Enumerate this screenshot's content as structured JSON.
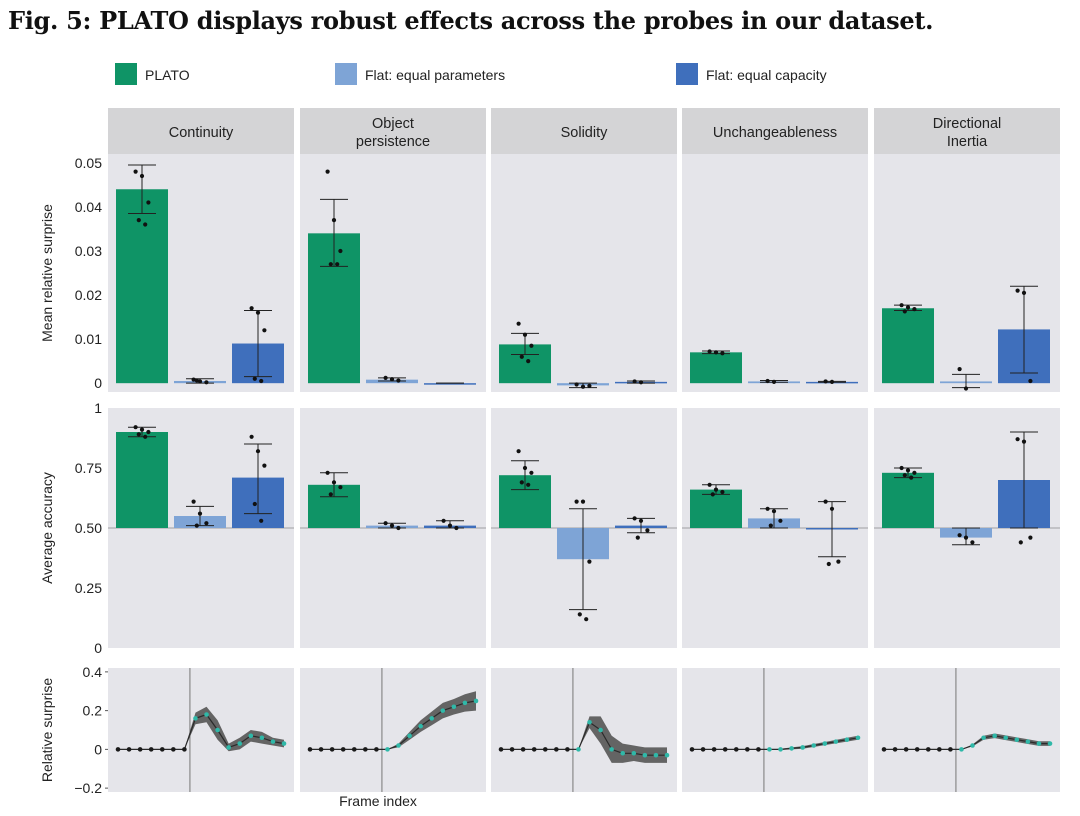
{
  "figure_title": "Fig. 5: PLATO displays robust effects across the probes in our dataset.",
  "colors": {
    "plato": "#0f9466",
    "flat_params": "#7ea4d6",
    "flat_capacity": "#3f6fbc",
    "panel_bg": "#e5e5ea",
    "strip_bg": "#d4d4d6"
  },
  "chart_data": {
    "type": "bar",
    "probes": [
      "Continuity",
      "Object\npersistence",
      "Solidity",
      "Unchangeableness",
      "Directional\nInertia"
    ],
    "legend": [
      "PLATO",
      "Flat: equal parameters",
      "Flat: equal capacity"
    ],
    "surprise": {
      "ylabel": "Mean relative surprise",
      "ylim": [
        -0.002,
        0.052
      ],
      "ticks": [
        0,
        0.01,
        0.02,
        0.03,
        0.04,
        0.05
      ],
      "tick_labels": [
        "0",
        "0.01",
        "0.02",
        "0.03",
        "0.04",
        "0.05"
      ],
      "values": [
        [
          0.044,
          0.0005,
          0.009
        ],
        [
          0.034,
          0.0008,
          0.0
        ],
        [
          0.0088,
          -0.0005,
          0.0003
        ],
        [
          0.007,
          0.0004,
          0.0003
        ],
        [
          0.017,
          0.0004,
          0.0122
        ]
      ],
      "errors": [
        [
          [
            0.0385,
            0.0495
          ],
          [
            0.0,
            0.001
          ],
          [
            0.0015,
            0.0165
          ]
        ],
        [
          [
            0.0265,
            0.0417
          ],
          [
            0.0005,
            0.0012
          ],
          [
            0.0,
            0.0
          ]
        ],
        [
          [
            0.0065,
            0.0113
          ],
          [
            -0.001,
            0.0
          ],
          [
            0.0,
            0.0005
          ]
        ],
        [
          [
            0.0067,
            0.0073
          ],
          [
            0.0002,
            0.0006
          ],
          [
            0.0002,
            0.0004
          ]
        ],
        [
          [
            0.0165,
            0.0177
          ],
          [
            -0.001,
            0.002
          ],
          [
            0.0023,
            0.022
          ]
        ]
      ],
      "points": [
        [
          [
            0.048,
            0.047,
            0.041,
            0.037,
            0.036
          ],
          [
            0.0008,
            0.0004,
            0.0002,
            0.0006
          ],
          [
            0.017,
            0.016,
            0.012,
            0.001,
            0.0005
          ]
        ],
        [
          [
            0.048,
            0.037,
            0.03,
            0.027,
            0.027
          ],
          [
            0.0012,
            0.0009,
            0.0006
          ],
          []
        ],
        [
          [
            0.0135,
            0.011,
            0.0085,
            0.006,
            0.005
          ],
          [
            -0.0003,
            -0.0008,
            -0.0006
          ],
          [
            0.0004,
            0.0002
          ]
        ],
        [
          [
            0.0072,
            0.007,
            0.0068
          ],
          [
            0.0005,
            0.0003
          ],
          [
            0.0004,
            0.0003
          ]
        ],
        [
          [
            0.0177,
            0.0172,
            0.0168,
            0.0163
          ],
          [
            0.0032,
            -0.0012
          ],
          [
            0.021,
            0.0205,
            0.0005
          ]
        ]
      ]
    },
    "accuracy": {
      "ylabel": "Average accuracy",
      "ylim": [
        0,
        1.0
      ],
      "ticks": [
        0,
        0.25,
        0.5,
        0.75,
        1.0
      ],
      "tick_labels": [
        "0",
        "0.25",
        "0.50",
        "0.75",
        "1"
      ],
      "baseline": 0.5,
      "values": [
        [
          0.9,
          0.55,
          0.71
        ],
        [
          0.68,
          0.51,
          0.51
        ],
        [
          0.72,
          0.37,
          0.51
        ],
        [
          0.66,
          0.54,
          0.5
        ],
        [
          0.73,
          0.46,
          0.7
        ]
      ],
      "errors": [
        [
          [
            0.88,
            0.92
          ],
          [
            0.51,
            0.59
          ],
          [
            0.56,
            0.85
          ]
        ],
        [
          [
            0.63,
            0.73
          ],
          [
            0.5,
            0.52
          ],
          [
            0.5,
            0.53
          ]
        ],
        [
          [
            0.66,
            0.78
          ],
          [
            0.16,
            0.58
          ],
          [
            0.48,
            0.54
          ]
        ],
        [
          [
            0.64,
            0.68
          ],
          [
            0.5,
            0.58
          ],
          [
            0.38,
            0.61
          ]
        ],
        [
          [
            0.71,
            0.75
          ],
          [
            0.43,
            0.5
          ],
          [
            0.5,
            0.9
          ]
        ]
      ],
      "points": [
        [
          [
            0.92,
            0.91,
            0.9,
            0.89,
            0.88
          ],
          [
            0.61,
            0.56,
            0.52,
            0.51
          ],
          [
            0.88,
            0.82,
            0.76,
            0.6,
            0.53
          ]
        ],
        [
          [
            0.73,
            0.69,
            0.67,
            0.64
          ],
          [
            0.52,
            0.51,
            0.5
          ],
          [
            0.53,
            0.51,
            0.5
          ]
        ],
        [
          [
            0.82,
            0.75,
            0.73,
            0.69,
            0.68
          ],
          [
            0.61,
            0.61,
            0.36,
            0.14,
            0.12
          ],
          [
            0.54,
            0.53,
            0.49,
            0.46
          ]
        ],
        [
          [
            0.68,
            0.66,
            0.65,
            0.64
          ],
          [
            0.58,
            0.57,
            0.53,
            0.51
          ],
          [
            0.61,
            0.58,
            0.36,
            0.35
          ]
        ],
        [
          [
            0.75,
            0.74,
            0.73,
            0.72,
            0.71
          ],
          [
            0.47,
            0.46,
            0.44
          ],
          [
            0.87,
            0.86,
            0.46,
            0.44
          ]
        ]
      ]
    },
    "timeseries": {
      "ylabel": "Relative surprise",
      "xlabel": "Frame index",
      "ylim": [
        -0.22,
        0.42
      ],
      "ticks": [
        -0.2,
        0,
        0.2,
        0.4
      ],
      "tick_labels": [
        "−0.2",
        "0",
        "0.2",
        "0.4"
      ],
      "frames": 16,
      "event_frame": 6.5,
      "mean": [
        [
          0,
          0,
          0,
          0,
          0,
          0,
          0,
          0.16,
          0.18,
          0.1,
          0.01,
          0.03,
          0.07,
          0.06,
          0.04,
          0.03
        ],
        [
          0,
          0,
          0,
          0,
          0,
          0,
          0,
          0,
          0.02,
          0.07,
          0.12,
          0.16,
          0.2,
          0.22,
          0.24,
          0.25
        ],
        [
          0,
          0,
          0,
          0,
          0,
          0,
          0,
          0,
          0.14,
          0.1,
          0.0,
          -0.02,
          -0.02,
          -0.03,
          -0.03,
          -0.03
        ],
        [
          0,
          0,
          0,
          0,
          0,
          0,
          0,
          0,
          0.0,
          0.005,
          0.01,
          0.02,
          0.03,
          0.04,
          0.05,
          0.06
        ],
        [
          0,
          0,
          0,
          0,
          0,
          0,
          0,
          0,
          0.02,
          0.06,
          0.07,
          0.06,
          0.05,
          0.04,
          0.03,
          0.03
        ]
      ],
      "band": [
        [
          0,
          0,
          0,
          0,
          0,
          0,
          0,
          0.03,
          0.04,
          0.05,
          0.02,
          0.03,
          0.03,
          0.03,
          0.02,
          0.02
        ],
        [
          0,
          0,
          0,
          0,
          0,
          0,
          0,
          0,
          0.01,
          0.02,
          0.03,
          0.035,
          0.04,
          0.04,
          0.045,
          0.05
        ],
        [
          0,
          0,
          0,
          0,
          0,
          0,
          0,
          0,
          0.03,
          0.07,
          0.07,
          0.05,
          0.04,
          0.04,
          0.04,
          0.04
        ],
        [
          0,
          0,
          0,
          0,
          0,
          0,
          0,
          0,
          0.003,
          0.005,
          0.007,
          0.008,
          0.008,
          0.009,
          0.01,
          0.01
        ],
        [
          0,
          0,
          0,
          0,
          0,
          0,
          0,
          0,
          0.005,
          0.01,
          0.012,
          0.012,
          0.012,
          0.012,
          0.012,
          0.012
        ]
      ]
    }
  }
}
